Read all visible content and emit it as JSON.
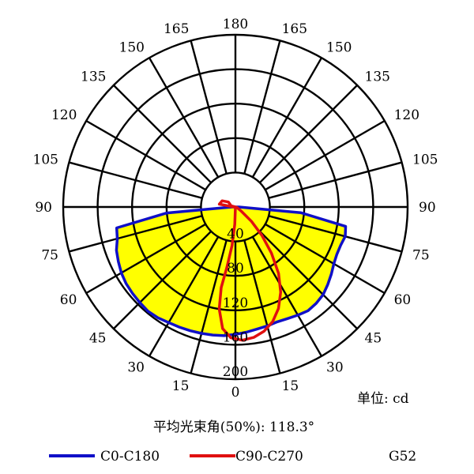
{
  "chart_data": {
    "type": "polar",
    "unit_label": "单位: cd",
    "beam_angle_label": "平均光束角(50%): 118.3°",
    "model": "G52",
    "radial_ticks": [
      40,
      80,
      120,
      160,
      200
    ],
    "r_max": 200,
    "angle_ticks_left": [
      "180",
      "165",
      "150",
      "135",
      "120",
      "105",
      "90",
      "75",
      "60",
      "45",
      "30",
      "15",
      "0"
    ],
    "angle_ticks_right": [
      "165",
      "150",
      "135",
      "120",
      "105",
      "90",
      "75",
      "60",
      "45",
      "30",
      "15"
    ],
    "series": [
      {
        "name": "C0-C180",
        "color": "#1010c8",
        "fill": "#ffff00",
        "points": [
          [
            -90,
            4
          ],
          [
            -85,
            80
          ],
          [
            -80,
            140
          ],
          [
            -75,
            142
          ],
          [
            -70,
            147
          ],
          [
            -65,
            150
          ],
          [
            -60,
            153
          ],
          [
            -55,
            155
          ],
          [
            -50,
            156
          ],
          [
            -45,
            157
          ],
          [
            -40,
            158
          ],
          [
            -35,
            157
          ],
          [
            -30,
            155
          ],
          [
            -25,
            154
          ],
          [
            -20,
            153
          ],
          [
            -15,
            152
          ],
          [
            -10,
            151
          ],
          [
            -5,
            150
          ],
          [
            0,
            148
          ],
          [
            5,
            146
          ],
          [
            10,
            144
          ],
          [
            15,
            143
          ],
          [
            20,
            142
          ],
          [
            25,
            143
          ],
          [
            30,
            145
          ],
          [
            35,
            147
          ],
          [
            40,
            146
          ],
          [
            45,
            144
          ],
          [
            50,
            140
          ],
          [
            55,
            136
          ],
          [
            60,
            132
          ],
          [
            65,
            130
          ],
          [
            70,
            130
          ],
          [
            75,
            132
          ],
          [
            80,
            130
          ],
          [
            85,
            76
          ],
          [
            90,
            4
          ]
        ]
      },
      {
        "name": "C90-C270",
        "color": "#e01010",
        "fill": "none",
        "points": [
          [
            0,
            0
          ],
          [
            -2,
            20
          ],
          [
            -5,
            45
          ],
          [
            -8,
            70
          ],
          [
            -10,
            95
          ],
          [
            -9,
            120
          ],
          [
            -6,
            142
          ],
          [
            -2,
            152
          ],
          [
            3,
            155
          ],
          [
            8,
            153
          ],
          [
            13,
            148
          ],
          [
            18,
            140
          ],
          [
            23,
            128
          ],
          [
            28,
            112
          ],
          [
            33,
            92
          ],
          [
            38,
            68
          ],
          [
            43,
            45
          ],
          [
            48,
            25
          ],
          [
            55,
            8
          ],
          [
            70,
            2
          ],
          [
            90,
            0
          ],
          [
            -95,
            4
          ],
          [
            -100,
            19
          ],
          [
            -115,
            17
          ],
          [
            -125,
            10
          ],
          [
            -105,
            5
          ],
          [
            -90,
            0
          ]
        ]
      }
    ]
  }
}
